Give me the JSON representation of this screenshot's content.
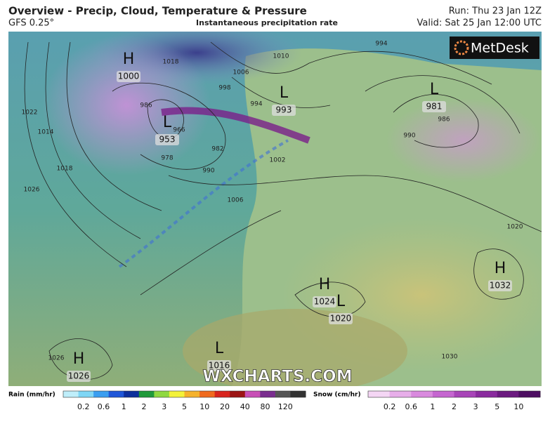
{
  "header": {
    "title": "Overview - Precip, Cloud, Temperature & Pressure",
    "model": "GFS 0.25°",
    "subtitle": "Instantaneous precipitation rate",
    "run": "Run: Thu 23 Jan 12Z",
    "valid": "Valid: Sat 25 Jan 12:00 UTC"
  },
  "brand": "MetDesk",
  "watermark": "WXCHARTS.COM",
  "pressure_centers": [
    {
      "type": "H",
      "value": "1000"
    },
    {
      "type": "L",
      "value": "993"
    },
    {
      "type": "L",
      "value": "981"
    },
    {
      "type": "L",
      "value": "953"
    },
    {
      "type": "H",
      "value": "1024"
    },
    {
      "type": "L",
      "value": "1020"
    },
    {
      "type": "H",
      "value": "1032"
    },
    {
      "type": "H",
      "value": "1026"
    },
    {
      "type": "L",
      "value": "1016"
    }
  ],
  "isobar_labels": [
    "1022",
    "1014",
    "1018",
    "1026",
    "1010",
    "1006",
    "994",
    "998",
    "994",
    "1018",
    "986",
    "966",
    "982",
    "978",
    "990",
    "1002",
    "1006",
    "990",
    "986",
    "1020",
    "1030",
    "1026"
  ],
  "legend": {
    "rain": {
      "label": "Rain (mm/hr)",
      "ticks": [
        0.2,
        0.6,
        1,
        2,
        3,
        5,
        10,
        20,
        40,
        80,
        120
      ]
    },
    "snow": {
      "label": "Snow (cm/hr)",
      "ticks": [
        0.2,
        0.6,
        1,
        2,
        3,
        5,
        10
      ]
    }
  }
}
